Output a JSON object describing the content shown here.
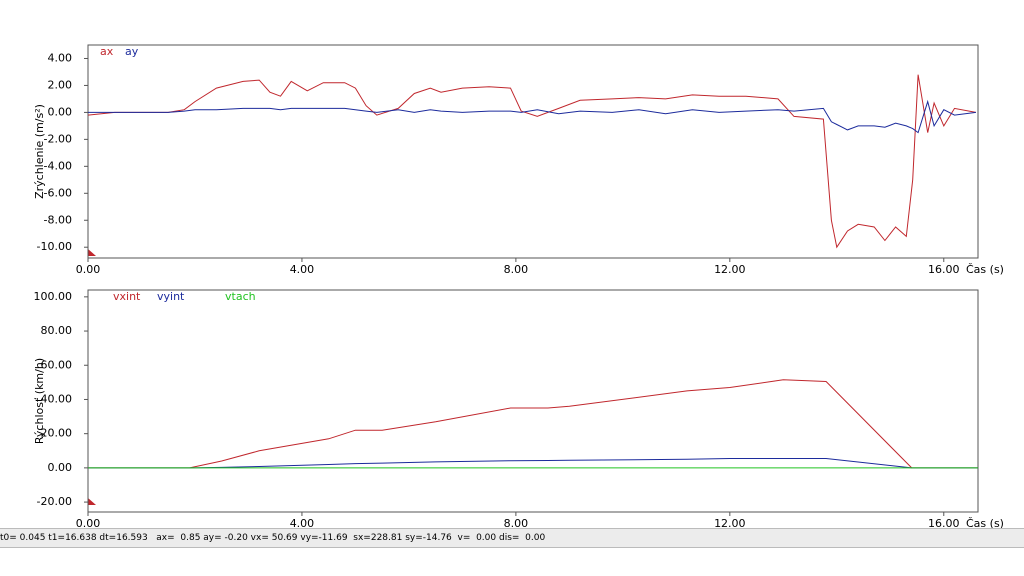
{
  "chart_data": [
    {
      "type": "line",
      "y_label": "Zrýchlenie (m/s²)",
      "x_label": "Čas (s)",
      "x": [
        0,
        0.5,
        1.5,
        1.8,
        2.0,
        2.4,
        2.9,
        3.2,
        3.4,
        3.6,
        3.8,
        4.1,
        4.4,
        4.8,
        5.0,
        5.2,
        5.4,
        5.8,
        6.1,
        6.4,
        6.6,
        7.0,
        7.5,
        7.9,
        8.1,
        8.4,
        8.8,
        9.2,
        9.8,
        10.3,
        10.8,
        11.3,
        11.8,
        12.3,
        12.9,
        13.2,
        13.75,
        13.9,
        14.0,
        14.2,
        14.4,
        14.7,
        14.9,
        15.1,
        15.3,
        15.42,
        15.52,
        15.7,
        15.82,
        16.0,
        16.2,
        16.6
      ],
      "series": [
        {
          "name": "ax",
          "color": "#c0272d",
          "values": [
            -0.2,
            0,
            0,
            0.2,
            0.8,
            1.8,
            2.3,
            2.4,
            1.5,
            1.2,
            2.3,
            1.6,
            2.2,
            2.2,
            1.8,
            0.5,
            -0.2,
            0.3,
            1.4,
            1.8,
            1.5,
            1.8,
            1.9,
            1.8,
            0.1,
            -0.3,
            0.3,
            0.9,
            1.0,
            1.1,
            1.0,
            1.3,
            1.2,
            1.2,
            1.0,
            -0.3,
            -0.5,
            -8,
            -10,
            -8.8,
            -8.3,
            -8.5,
            -9.5,
            -8.5,
            -9.2,
            -5,
            2.8,
            -1.5,
            0.7,
            -1.0,
            0.3,
            0
          ]
        },
        {
          "name": "ay",
          "color": "#1c2b9c",
          "values": [
            0,
            0,
            0,
            0.1,
            0.2,
            0.2,
            0.3,
            0.3,
            0.3,
            0.2,
            0.3,
            0.3,
            0.3,
            0.3,
            0.2,
            0.1,
            0,
            0.2,
            0,
            0.2,
            0.1,
            0,
            0.1,
            0.1,
            0,
            0.2,
            -0.1,
            0.1,
            0,
            0.2,
            -0.1,
            0.2,
            0,
            0.1,
            0.2,
            0.1,
            0.3,
            -0.7,
            -0.9,
            -1.3,
            -1.0,
            -1.0,
            -1.1,
            -0.8,
            -1.0,
            -1.2,
            -1.5,
            0.8,
            -1.0,
            0.2,
            -0.2,
            0
          ]
        }
      ],
      "xlim": [
        0,
        16.64
      ],
      "ylim": [
        -10.8,
        5.0
      ],
      "xticks": [
        {
          "value": 0,
          "label": "0.00"
        },
        {
          "value": 4,
          "label": "4.00"
        },
        {
          "value": 8,
          "label": "8.00"
        },
        {
          "value": 12,
          "label": "12.00"
        },
        {
          "value": 16,
          "label": "16.00"
        }
      ],
      "yticks": [
        {
          "value": 4,
          "label": "4.00"
        },
        {
          "value": 2,
          "label": "2.00"
        },
        {
          "value": 0,
          "label": "0.00"
        },
        {
          "value": -2,
          "label": "-2.00"
        },
        {
          "value": -4,
          "label": "-4.00"
        },
        {
          "value": -6,
          "label": "-6.00"
        },
        {
          "value": -8,
          "label": "-8.00"
        },
        {
          "value": -10,
          "label": "-10.00"
        }
      ]
    },
    {
      "type": "line",
      "y_label": "Rýchlosť (km/h)",
      "x_label": "Čas (s)",
      "x": [
        0,
        1.9,
        2.5,
        3.2,
        4.5,
        5.0,
        5.5,
        6.5,
        7.9,
        8.6,
        9.0,
        11.2,
        12.0,
        13.0,
        13.8,
        15.4,
        16.64
      ],
      "series": [
        {
          "name": "vxint",
          "color": "#c0272d",
          "values": [
            0,
            0,
            4,
            10,
            17,
            22,
            22,
            27,
            35,
            35,
            36,
            45,
            47,
            51.5,
            50.5,
            0,
            0
          ]
        },
        {
          "name": "vyint",
          "color": "#1c2b9c",
          "values": [
            0,
            0,
            0.3,
            0.8,
            2,
            2.5,
            2.8,
            3.5,
            4.2,
            4.3,
            4.5,
            5,
            5.5,
            5.5,
            5.5,
            0,
            0
          ]
        },
        {
          "name": "vtach",
          "color": "#22c322",
          "values": [
            0,
            0,
            0,
            0,
            0,
            0,
            0,
            0,
            0,
            0,
            0,
            0,
            0,
            0,
            0,
            0,
            0
          ]
        }
      ],
      "xlim": [
        0,
        16.64
      ],
      "ylim": [
        -25.8,
        104
      ],
      "xticks": [
        {
          "value": 0,
          "label": "0.00"
        },
        {
          "value": 4,
          "label": "4.00"
        },
        {
          "value": 8,
          "label": "8.00"
        },
        {
          "value": 12,
          "label": "12.00"
        },
        {
          "value": 16,
          "label": "16.00"
        }
      ],
      "yticks": [
        {
          "value": 100,
          "label": "100.00"
        },
        {
          "value": 80,
          "label": "80.00"
        },
        {
          "value": 60,
          "label": "60.00"
        },
        {
          "value": 40,
          "label": "40.00"
        },
        {
          "value": 20,
          "label": "20.00"
        },
        {
          "value": 0,
          "label": "0.00"
        },
        {
          "value": -20,
          "label": "-20.00"
        }
      ]
    }
  ],
  "status_bar": "t0= 0.045 t1=16.638 dt=16.593   ax=  0.85 ay= -0.20 vx= 50.69 vy=-11.69  sx=228.81 sy=-14.76  v=  0.00 dis=  0.00"
}
